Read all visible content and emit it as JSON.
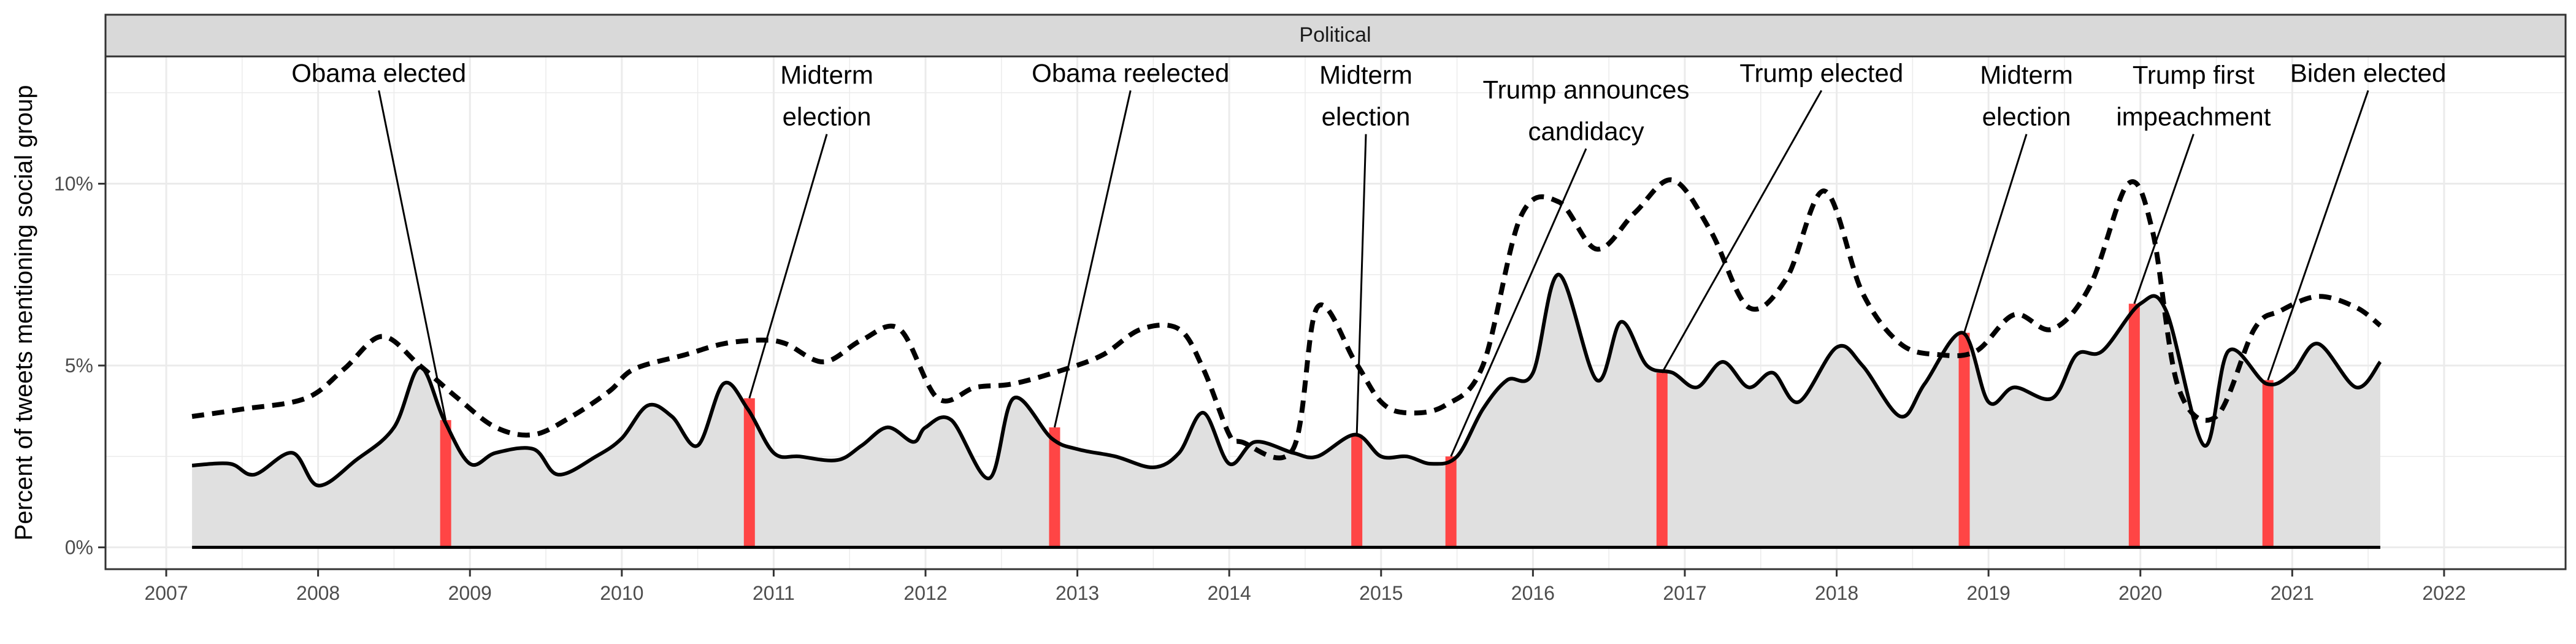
{
  "chart_data": {
    "type": "area",
    "panel_label": "Political",
    "ylabel": "Percent of tweets mentioning social group",
    "xlabel": "",
    "xlim": [
      2006.6,
      2022.8
    ],
    "ylim": [
      -0.6,
      13.5
    ],
    "x_ticks": [
      2007,
      2008,
      2009,
      2010,
      2011,
      2012,
      2013,
      2014,
      2015,
      2016,
      2017,
      2018,
      2019,
      2020,
      2021,
      2022
    ],
    "x_tick_labels": [
      "2007",
      "2008",
      "2009",
      "2010",
      "2011",
      "2012",
      "2013",
      "2014",
      "2015",
      "2016",
      "2017",
      "2018",
      "2019",
      "2020",
      "2021",
      "2022"
    ],
    "y_ticks": [
      0,
      5,
      10
    ],
    "y_tick_labels": [
      "0%",
      "5%",
      "10%"
    ],
    "grid": true,
    "series": [
      {
        "style": "solid",
        "x": [
          2007.17,
          2007.42,
          2007.58,
          2007.83,
          2008.0,
          2008.25,
          2008.5,
          2008.67,
          2008.83,
          2009.0,
          2009.17,
          2009.42,
          2009.58,
          2009.83,
          2010.0,
          2010.17,
          2010.33,
          2010.5,
          2010.67,
          2010.83,
          2011.0,
          2011.17,
          2011.42,
          2011.58,
          2011.75,
          2011.92,
          2012.0,
          2012.17,
          2012.42,
          2012.58,
          2012.83,
          2013.0,
          2013.25,
          2013.5,
          2013.67,
          2013.83,
          2014.0,
          2014.17,
          2014.42,
          2014.58,
          2014.83,
          2015.0,
          2015.17,
          2015.33,
          2015.5,
          2015.67,
          2015.83,
          2016.0,
          2016.17,
          2016.42,
          2016.58,
          2016.75,
          2016.92,
          2017.08,
          2017.25,
          2017.42,
          2017.58,
          2017.75,
          2018.0,
          2018.17,
          2018.42,
          2018.58,
          2018.83,
          2019.0,
          2019.17,
          2019.42,
          2019.58,
          2019.75,
          2020.0,
          2020.17,
          2020.42,
          2020.58,
          2020.83,
          2021.0,
          2021.17,
          2021.42,
          2021.58
        ],
        "values": [
          2.25,
          2.3,
          2.0,
          2.6,
          1.7,
          2.4,
          3.3,
          4.95,
          3.5,
          2.3,
          2.6,
          2.7,
          2.0,
          2.5,
          3.0,
          3.9,
          3.6,
          2.8,
          4.5,
          3.8,
          2.6,
          2.5,
          2.4,
          2.8,
          3.3,
          2.9,
          3.3,
          3.5,
          1.9,
          4.1,
          3.0,
          2.7,
          2.5,
          2.2,
          2.6,
          3.7,
          2.3,
          2.9,
          2.6,
          2.5,
          3.1,
          2.5,
          2.5,
          2.3,
          2.5,
          3.8,
          4.6,
          4.8,
          7.5,
          4.6,
          6.2,
          5.0,
          4.8,
          4.4,
          5.1,
          4.4,
          4.8,
          4.0,
          5.5,
          5.0,
          3.6,
          4.5,
          5.9,
          4.0,
          4.4,
          4.1,
          5.3,
          5.4,
          6.7,
          6.5,
          2.8,
          5.4,
          4.5,
          4.8,
          5.6,
          4.4,
          5.1
        ]
      },
      {
        "style": "dashed",
        "x": [
          2007.17,
          2007.5,
          2007.92,
          2008.17,
          2008.42,
          2008.67,
          2008.92,
          2009.17,
          2009.42,
          2009.67,
          2009.92,
          2010.08,
          2010.42,
          2010.67,
          2010.92,
          2011.08,
          2011.33,
          2011.58,
          2011.83,
          2012.08,
          2012.33,
          2012.58,
          2012.92,
          2013.17,
          2013.42,
          2013.67,
          2013.83,
          2014.0,
          2014.08,
          2014.42,
          2014.58,
          2014.83,
          2015.0,
          2015.17,
          2015.42,
          2015.67,
          2015.92,
          2016.17,
          2016.42,
          2016.67,
          2016.92,
          2017.17,
          2017.42,
          2017.67,
          2017.92,
          2018.17,
          2018.42,
          2018.67,
          2018.92,
          2019.17,
          2019.42,
          2019.67,
          2019.92,
          2020.08,
          2020.25,
          2020.5,
          2020.75,
          2020.92,
          2021.17,
          2021.42,
          2021.58
        ],
        "values": [
          3.6,
          3.8,
          4.1,
          4.9,
          5.8,
          5.0,
          4.1,
          3.3,
          3.1,
          3.6,
          4.3,
          4.9,
          5.3,
          5.6,
          5.7,
          5.6,
          5.1,
          5.7,
          6.0,
          4.1,
          4.4,
          4.5,
          4.9,
          5.3,
          6.0,
          6.0,
          4.9,
          3.1,
          2.9,
          2.7,
          6.6,
          5.1,
          4.0,
          3.7,
          3.9,
          5.0,
          9.1,
          9.5,
          8.2,
          9.2,
          10.1,
          8.7,
          6.6,
          7.4,
          9.8,
          7.0,
          5.6,
          5.3,
          5.4,
          6.4,
          6.0,
          7.2,
          10.0,
          8.7,
          4.4,
          3.6,
          6.0,
          6.5,
          6.9,
          6.6,
          6.1
        ]
      }
    ],
    "events": [
      {
        "label": "Obama elected",
        "lines": [
          "Obama elected"
        ],
        "x": 2008.84,
        "y": 3.5,
        "tx": 2008.4,
        "ty": 12.8
      },
      {
        "label": "Midterm election",
        "lines": [
          "Midterm",
          "election"
        ],
        "x": 2010.84,
        "y": 4.1,
        "tx": 2011.35,
        "ty": 11.6
      },
      {
        "label": "Obama reelected",
        "lines": [
          "Obama reelected"
        ],
        "x": 2012.85,
        "y": 3.3,
        "tx": 2013.35,
        "ty": 12.8
      },
      {
        "label": "Midterm election",
        "lines": [
          "Midterm",
          "election"
        ],
        "x": 2014.84,
        "y": 3.1,
        "tx": 2014.9,
        "ty": 11.6
      },
      {
        "label": "Trump announces candidacy",
        "lines": [
          "Trump announces",
          "candidacy"
        ],
        "x": 2015.46,
        "y": 2.5,
        "tx": 2016.35,
        "ty": 11.2
      },
      {
        "label": "Trump elected",
        "lines": [
          "Trump elected"
        ],
        "x": 2016.85,
        "y": 4.8,
        "tx": 2017.9,
        "ty": 12.8
      },
      {
        "label": "Midterm election",
        "lines": [
          "Midterm",
          "election"
        ],
        "x": 2018.84,
        "y": 5.9,
        "tx": 2019.25,
        "ty": 11.6
      },
      {
        "label": "Trump first impeachment",
        "lines": [
          "Trump first",
          "impeachment"
        ],
        "x": 2019.96,
        "y": 6.7,
        "tx": 2020.35,
        "ty": 11.6
      },
      {
        "label": "Biden elected",
        "lines": [
          "Biden elected"
        ],
        "x": 2020.84,
        "y": 4.6,
        "tx": 2021.5,
        "ty": 12.8
      }
    ],
    "colors": {
      "area_fill": "#e0e0e0",
      "event_bar": "#ff4545",
      "line": "#000000",
      "strip": "#d9d9d9",
      "grid": "#ebebeb"
    }
  }
}
